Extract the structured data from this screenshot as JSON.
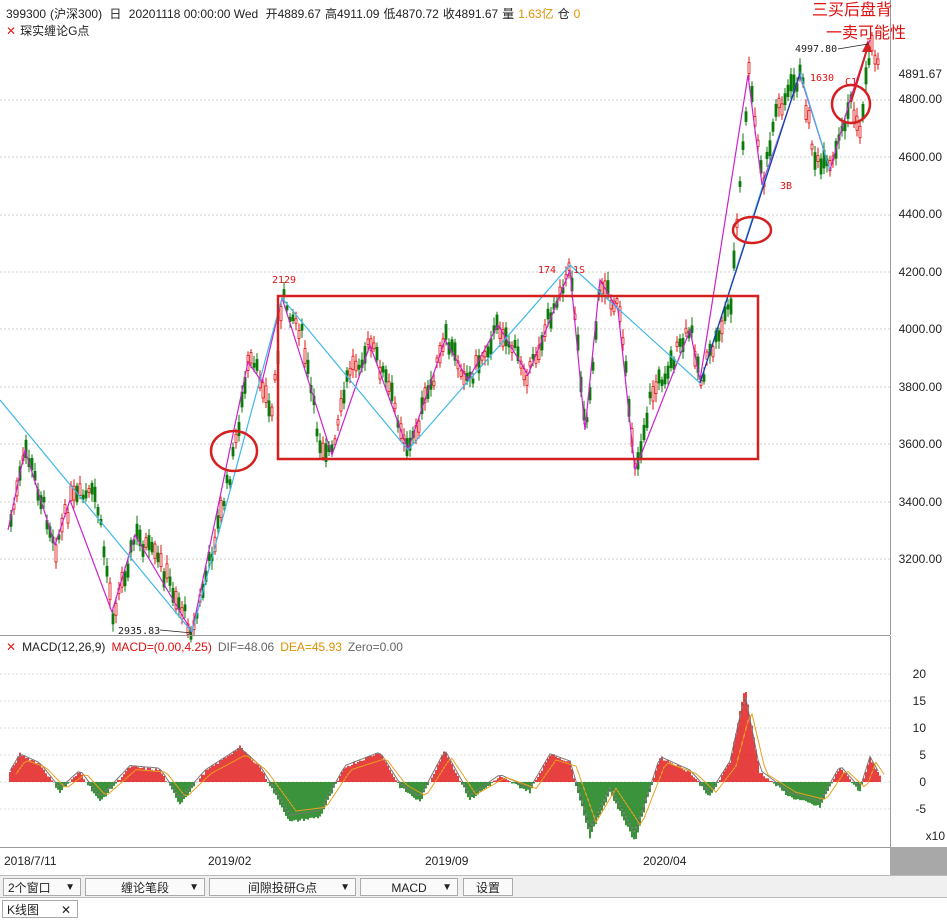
{
  "header": {
    "code": "399300",
    "name": "(沪深300)",
    "period": "日",
    "datetime": "20201118 00:00:00 Wed",
    "open": "开4889.67",
    "high": "高4911.09",
    "low": "低4870.72",
    "close": "收4891.67",
    "volume_label": "量",
    "volume": "1.63亿",
    "position_label": "仓",
    "position": "0"
  },
  "indicator": {
    "close_icon": "close-icon",
    "label": "琛实缠论G点"
  },
  "price_axis": {
    "ticks": [
      "4800.00",
      "4600.00",
      "4400.00",
      "4200.00",
      "4000.00",
      "3800.00",
      "3600.00",
      "3400.00",
      "3200.00"
    ],
    "current": "4891.67"
  },
  "chart_labels": {
    "low": "2935.83",
    "high": "4997.80",
    "l2129": "2129",
    "l174": "174",
    "l1s": "1S",
    "l1630": "1630",
    "l3b": "3B",
    "lc1": "C1"
  },
  "annotation": {
    "line1": "三买后盘背",
    "line2": "一卖可能性"
  },
  "macd": {
    "close_icon": "close-icon",
    "title": "MACD(12,26,9)",
    "value": "MACD=(0.00,4.25)",
    "dif": "DIF=48.06",
    "dea": "DEA=45.93",
    "zero": "Zero=0.00",
    "ticks": [
      "20",
      "15",
      "10",
      "5",
      "0",
      "-5"
    ],
    "multiplier": "x10"
  },
  "dates": [
    "2018/7/11",
    "2019/02",
    "2019/09",
    "2020/04"
  ],
  "toolbar": {
    "windows": "2个窗口",
    "strokes": "缠论笔段",
    "gpoints": "间隙投研G点",
    "indicator": "MACD",
    "settings": "设置"
  },
  "tab": {
    "label": "K线图"
  },
  "colors": {
    "up": "#e01010",
    "down": "#0a7a0a",
    "stroke_line": "#cc22cc",
    "segment_line": "#40b8e8",
    "box": "#d42020"
  }
}
